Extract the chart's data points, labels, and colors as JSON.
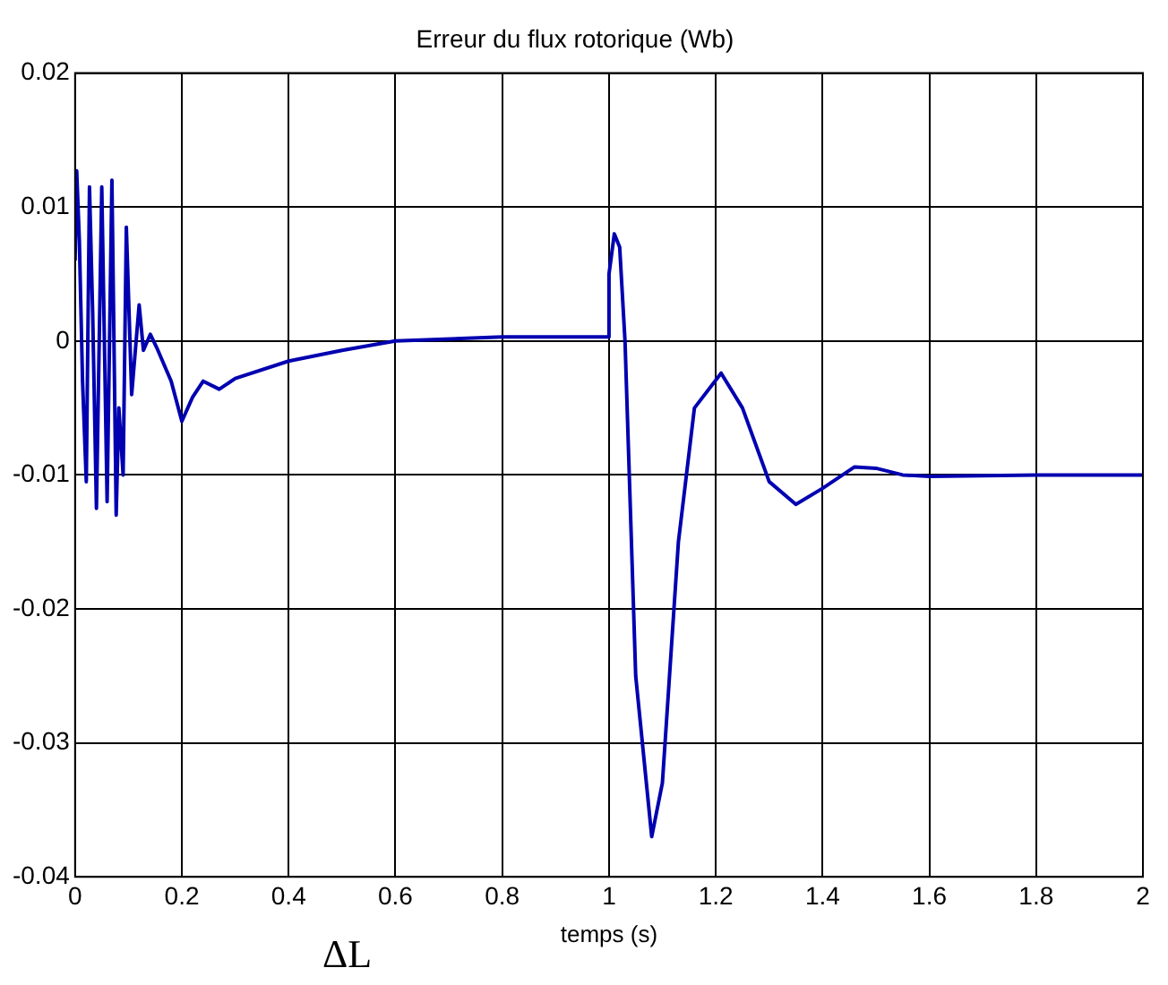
{
  "chart_data": {
    "type": "line",
    "title": "Erreur du flux rotorique (Wb)",
    "xlabel": "temps (s)",
    "annotations": [
      "ΔL"
    ],
    "xlim": [
      0,
      2
    ],
    "xticks": [
      0,
      0.2,
      0.4,
      0.6,
      0.8,
      1,
      1.2,
      1.4,
      1.6,
      1.8,
      2
    ],
    "ylim": [
      -0.04,
      0.02
    ],
    "yticks": [
      -0.04,
      -0.03,
      -0.02,
      -0.01,
      0,
      0.01,
      0.02
    ],
    "grid": true,
    "series": [
      {
        "color": "#0000b0",
        "x": [
          0,
          0.003,
          0.008,
          0.014,
          0.021,
          0.027,
          0.033,
          0.04,
          0.05,
          0.06,
          0.069,
          0.077,
          0.082,
          0.09,
          0.096,
          0.106,
          0.12,
          0.128,
          0.141,
          0.153,
          0.18,
          0.2,
          0.22,
          0.24,
          0.27,
          0.3,
          0.4,
          0.5,
          0.6,
          0.8,
          0.999,
          1.0,
          1.01,
          1.02,
          1.03,
          1.05,
          1.08,
          1.1,
          1.13,
          1.16,
          1.21,
          1.25,
          1.3,
          1.35,
          1.4,
          1.46,
          1.5,
          1.55,
          1.6,
          1.8,
          2
        ],
        "values": [
          0.006,
          0.0127,
          0.0075,
          -0.003,
          -0.0105,
          0.0115,
          0.002,
          -0.0125,
          0.0115,
          -0.012,
          0.012,
          -0.013,
          -0.005,
          -0.01,
          0.0085,
          -0.004,
          0.0027,
          -0.0007,
          0.0005,
          -0.0005,
          -0.003,
          -0.006,
          -0.0042,
          -0.003,
          -0.0036,
          -0.0028,
          -0.0015,
          -0.0007,
          0,
          0.0003,
          0.0003,
          0.005,
          0.008,
          0.007,
          0,
          -0.025,
          -0.037,
          -0.033,
          -0.015,
          -0.005,
          -0.0024,
          -0.005,
          -0.0105,
          -0.0122,
          -0.011,
          -0.0094,
          -0.0095,
          -0.01,
          -0.0101,
          -0.01,
          -0.01
        ]
      }
    ]
  }
}
